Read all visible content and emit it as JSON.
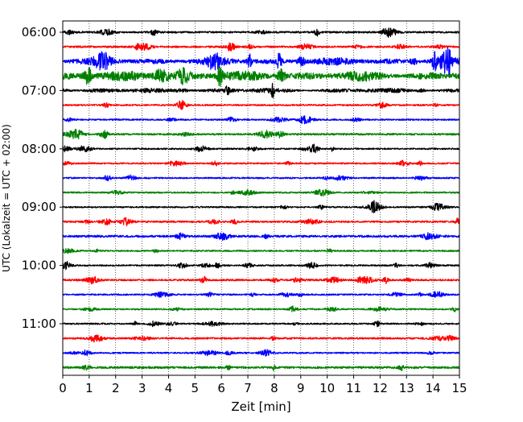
{
  "chart_data": {
    "type": "line",
    "title": "",
    "xlabel": "Zeit  [min]",
    "ylabel": "UTC (Lokalzeit = UTC + 02:00)",
    "xlim": [
      0,
      15
    ],
    "x_ticks": [
      0,
      1,
      2,
      3,
      4,
      5,
      6,
      7,
      8,
      9,
      10,
      11,
      12,
      13,
      14,
      15
    ],
    "x_tick_labels": [
      "0",
      "1",
      "2",
      "3",
      "4",
      "5",
      "6",
      "7",
      "8",
      "9",
      "10",
      "11",
      "12",
      "13",
      "14",
      "15"
    ],
    "y_ticks": [
      {
        "label": "06:00",
        "trace_index": 0
      },
      {
        "label": "07:00",
        "trace_index": 4
      },
      {
        "label": "08:00",
        "trace_index": 8
      },
      {
        "label": "09:00",
        "trace_index": 12
      },
      {
        "label": "10:00",
        "trace_index": 16
      },
      {
        "label": "11:00",
        "trace_index": 20
      }
    ],
    "vertical_grid": true,
    "grid_style": "dotted",
    "trace_minutes": 15,
    "traces": [
      {
        "start": "06:00",
        "color": "#000000",
        "amplitude": 0.12
      },
      {
        "start": "06:15",
        "color": "#ff0000",
        "amplitude": 0.12
      },
      {
        "start": "06:30",
        "color": "#0000ff",
        "amplitude": 0.55
      },
      {
        "start": "06:45",
        "color": "#008000",
        "amplitude": 0.75
      },
      {
        "start": "07:00",
        "color": "#000000",
        "amplitude": 0.35
      },
      {
        "start": "07:15",
        "color": "#ff0000",
        "amplitude": 0.1
      },
      {
        "start": "07:30",
        "color": "#0000ff",
        "amplitude": 0.1
      },
      {
        "start": "07:45",
        "color": "#008000",
        "amplitude": 0.12
      },
      {
        "start": "08:00",
        "color": "#000000",
        "amplitude": 0.1
      },
      {
        "start": "08:15",
        "color": "#ff0000",
        "amplitude": 0.1
      },
      {
        "start": "08:30",
        "color": "#0000ff",
        "amplitude": 0.1
      },
      {
        "start": "08:45",
        "color": "#008000",
        "amplitude": 0.1
      },
      {
        "start": "09:00",
        "color": "#000000",
        "amplitude": 0.1
      },
      {
        "start": "09:15",
        "color": "#ff0000",
        "amplitude": 0.12
      },
      {
        "start": "09:30",
        "color": "#0000ff",
        "amplitude": 0.14
      },
      {
        "start": "09:45",
        "color": "#008000",
        "amplitude": 0.1
      },
      {
        "start": "10:00",
        "color": "#000000",
        "amplitude": 0.1
      },
      {
        "start": "10:15",
        "color": "#ff0000",
        "amplitude": 0.12
      },
      {
        "start": "10:30",
        "color": "#0000ff",
        "amplitude": 0.1
      },
      {
        "start": "10:45",
        "color": "#008000",
        "amplitude": 0.1
      },
      {
        "start": "11:00",
        "color": "#000000",
        "amplitude": 0.1
      },
      {
        "start": "11:15",
        "color": "#ff0000",
        "amplitude": 0.12
      },
      {
        "start": "11:30",
        "color": "#0000ff",
        "amplitude": 0.1
      },
      {
        "start": "11:45",
        "color": "#008000",
        "amplitude": 0.14
      }
    ]
  }
}
